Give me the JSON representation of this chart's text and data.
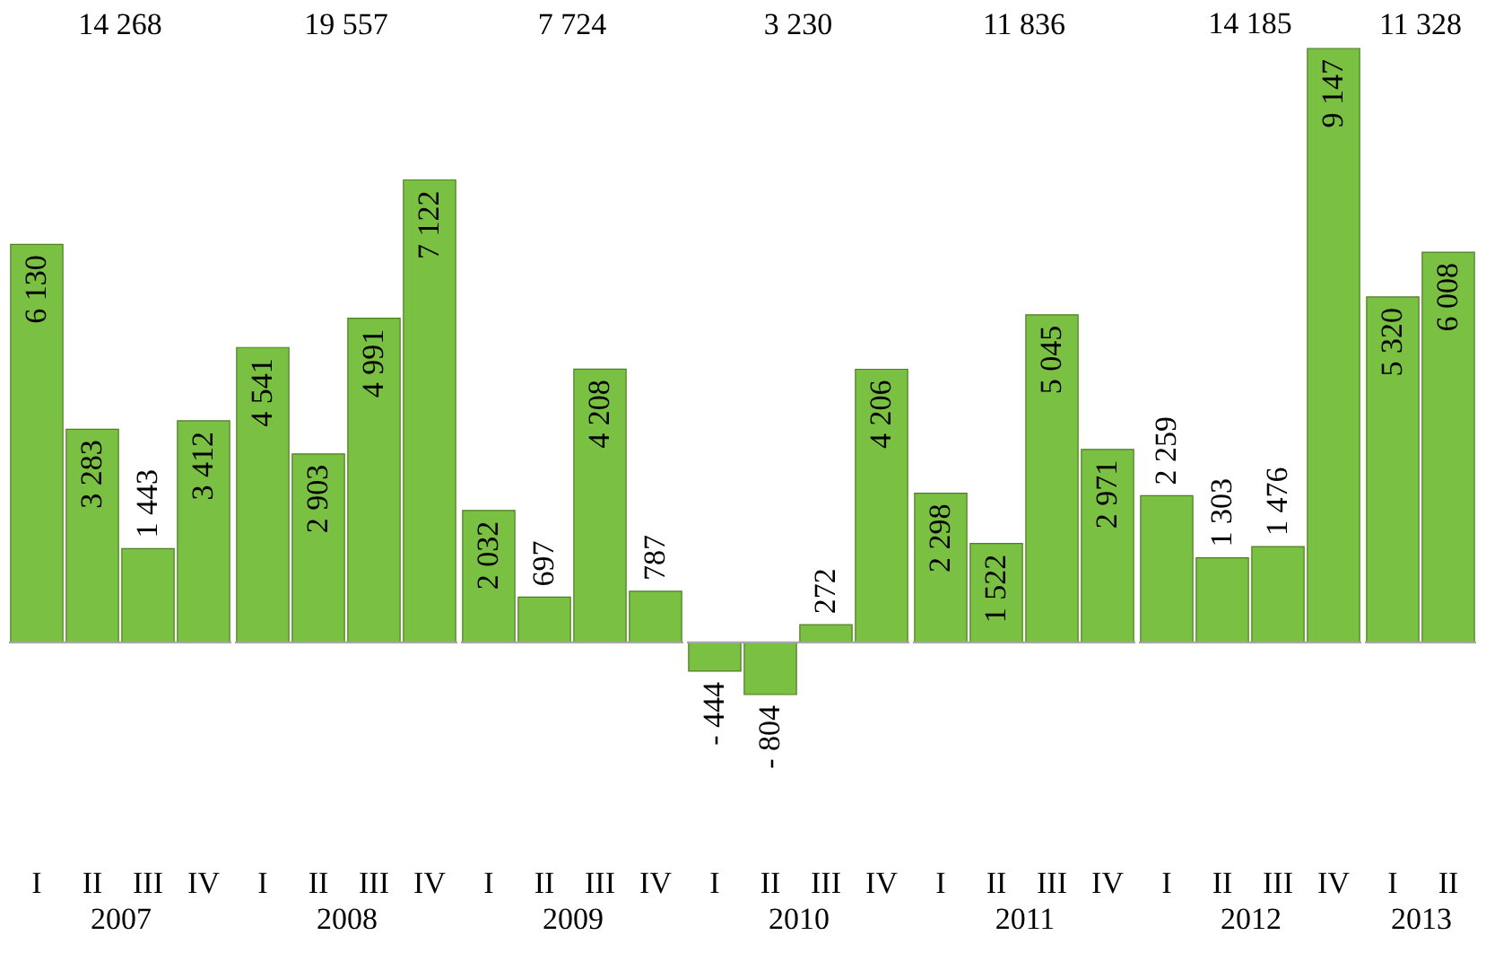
{
  "chart_data": [
    {
      "type": "bar",
      "title": "14 268",
      "xlabel": "2007",
      "categories": [
        "I",
        "II",
        "III",
        "IV"
      ],
      "values": [
        6130,
        3283,
        1443,
        3412
      ],
      "value_labels": [
        "6 130",
        "3 283",
        "1 443",
        "3 412"
      ],
      "color": "#7ac143",
      "tick_labels": "x",
      "ref_lines": [
        {
          "axis": "y",
          "value": 0,
          "color": "#a6a6a6"
        }
      ]
    },
    {
      "type": "bar",
      "title": "19 557",
      "xlabel": "2008",
      "categories": [
        "I",
        "II",
        "III",
        "IV"
      ],
      "values": [
        4541,
        2903,
        4991,
        7122
      ],
      "value_labels": [
        "4 541",
        "2 903",
        "4 991",
        "7 122"
      ],
      "color": "#7ac143",
      "tick_labels": "x",
      "ref_lines": [
        {
          "axis": "y",
          "value": 0,
          "color": "#a6a6a6"
        }
      ]
    },
    {
      "type": "bar",
      "title": "7 724",
      "xlabel": "2009",
      "categories": [
        "I",
        "II",
        "III",
        "IV"
      ],
      "values": [
        2032,
        697,
        4208,
        787
      ],
      "value_labels": [
        "2 032",
        "697",
        "4 208",
        "787"
      ],
      "color": "#7ac143",
      "tick_labels": "x",
      "ref_lines": [
        {
          "axis": "y",
          "value": 0,
          "color": "#a6a6a6"
        }
      ]
    },
    {
      "type": "bar",
      "title": "3 230",
      "xlabel": "2010",
      "categories": [
        "I",
        "II",
        "III",
        "IV"
      ],
      "values": [
        -444,
        -804,
        272,
        4206
      ],
      "value_labels": [
        "- 444",
        "- 804",
        "272",
        "4 206"
      ],
      "color": "#7ac143",
      "tick_labels": "x",
      "ref_lines": [
        {
          "axis": "y",
          "value": 0,
          "color": "#a6a6a6"
        }
      ]
    },
    {
      "type": "bar",
      "title": "11 836",
      "xlabel": "2011",
      "categories": [
        "I",
        "II",
        "III",
        "IV"
      ],
      "values": [
        2298,
        1522,
        5045,
        2971
      ],
      "value_labels": [
        "2 298",
        "1 522",
        "5 045",
        "2 971"
      ],
      "color": "#7ac143",
      "tick_labels": "x",
      "ref_lines": [
        {
          "axis": "y",
          "value": 0,
          "color": "#a6a6a6"
        }
      ]
    },
    {
      "type": "bar",
      "title": "14 185",
      "xlabel": "2012",
      "categories": [
        "I",
        "II",
        "III",
        "IV"
      ],
      "values": [
        2259,
        1303,
        1476,
        9147
      ],
      "value_labels": [
        "2 259",
        "1 303",
        "1 476",
        "9 147"
      ],
      "color": "#7ac143",
      "tick_labels": "x",
      "ref_lines": [
        {
          "axis": "y",
          "value": 0,
          "color": "#a6a6a6"
        }
      ]
    },
    {
      "type": "bar",
      "title": "11 328",
      "xlabel": "2013",
      "categories": [
        "I",
        "II"
      ],
      "values": [
        5320,
        6008
      ],
      "value_labels": [
        "5 320",
        "6 008"
      ],
      "color": "#7ac143",
      "tick_labels": "x",
      "ref_lines": [
        {
          "axis": "y",
          "value": 0,
          "color": "#a6a6a6"
        }
      ]
    }
  ]
}
